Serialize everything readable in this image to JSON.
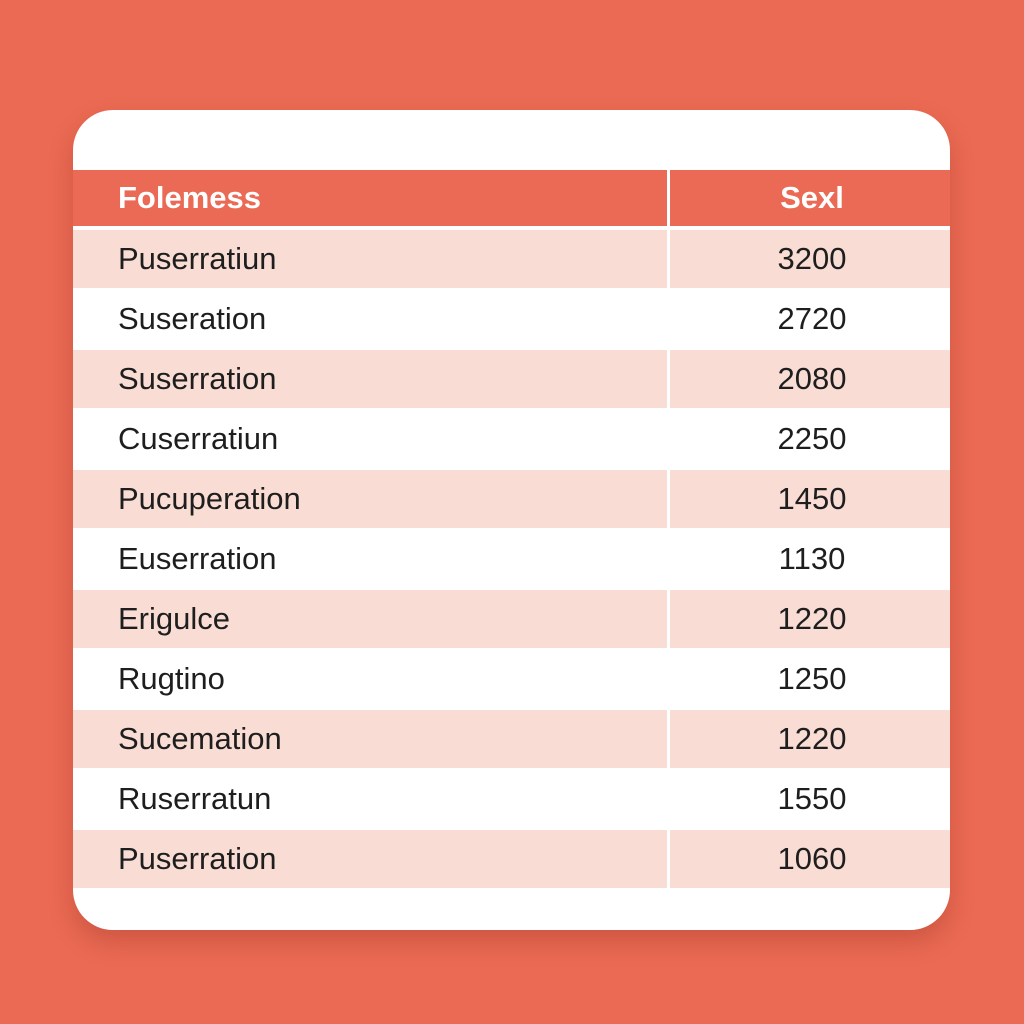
{
  "table": {
    "header": [
      "Folemess",
      "Sexl"
    ],
    "rows": [
      [
        "Puserratiun",
        3200
      ],
      [
        "Suseration",
        2720
      ],
      [
        "Suserration",
        2080
      ],
      [
        "Cuserratiun",
        2250
      ],
      [
        "Pucuperation",
        1450
      ],
      [
        "Euserration",
        1130
      ],
      [
        "Erigulce",
        1220
      ],
      [
        "Rugtino",
        1250
      ],
      [
        "Sucemation",
        1220
      ],
      [
        "Ruserratun",
        1550
      ],
      [
        "Puserration",
        1060
      ]
    ]
  }
}
